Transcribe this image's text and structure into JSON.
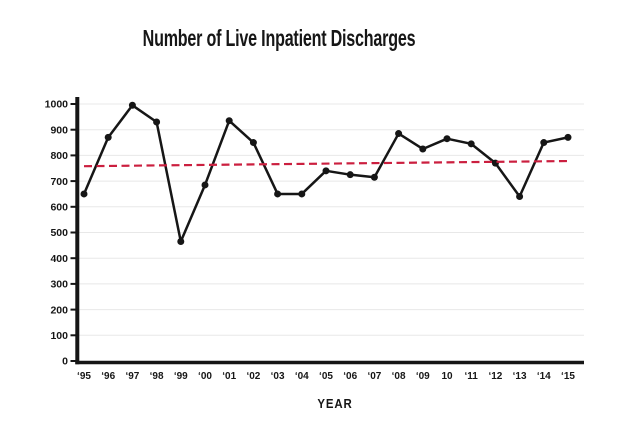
{
  "title": "Number of Live Inpatient Discharges",
  "chart_data": {
    "type": "line",
    "title": "Number of Live Inpatient Discharges",
    "xlabel": "YEAR",
    "ylabel": "",
    "categories": [
      "‘95",
      "‘96",
      "‘97",
      "‘98",
      "‘99",
      "‘00",
      "‘01",
      "‘02",
      "‘03",
      "‘04",
      "‘05",
      "‘06",
      "‘07",
      "‘08",
      "‘09",
      "10",
      "‘11",
      "‘12",
      "‘13",
      "‘14",
      "‘15"
    ],
    "series": [
      {
        "name": "Live inpatient discharges",
        "type": "line",
        "values": [
          650,
          870,
          995,
          930,
          465,
          685,
          935,
          850,
          650,
          650,
          740,
          725,
          715,
          885,
          825,
          865,
          845,
          770,
          640,
          850,
          870
        ]
      },
      {
        "name": "Trend line",
        "type": "trend",
        "style": "dashed",
        "endpoints": [
          758,
          778
        ]
      }
    ],
    "ylim": [
      0,
      1000
    ],
    "ytick_step": 100,
    "y_tick_labels": [
      "0",
      "100",
      "200",
      "300",
      "400",
      "500",
      "600",
      "700",
      "800",
      "900",
      "1000"
    ],
    "grid": "horizontal",
    "legend": "none",
    "colors": {
      "line": "#161616",
      "trend": "#cb1f3f",
      "grid": "#e8e8e8",
      "axis": "#161616",
      "text": "#161616",
      "background": "#ffffff"
    }
  }
}
